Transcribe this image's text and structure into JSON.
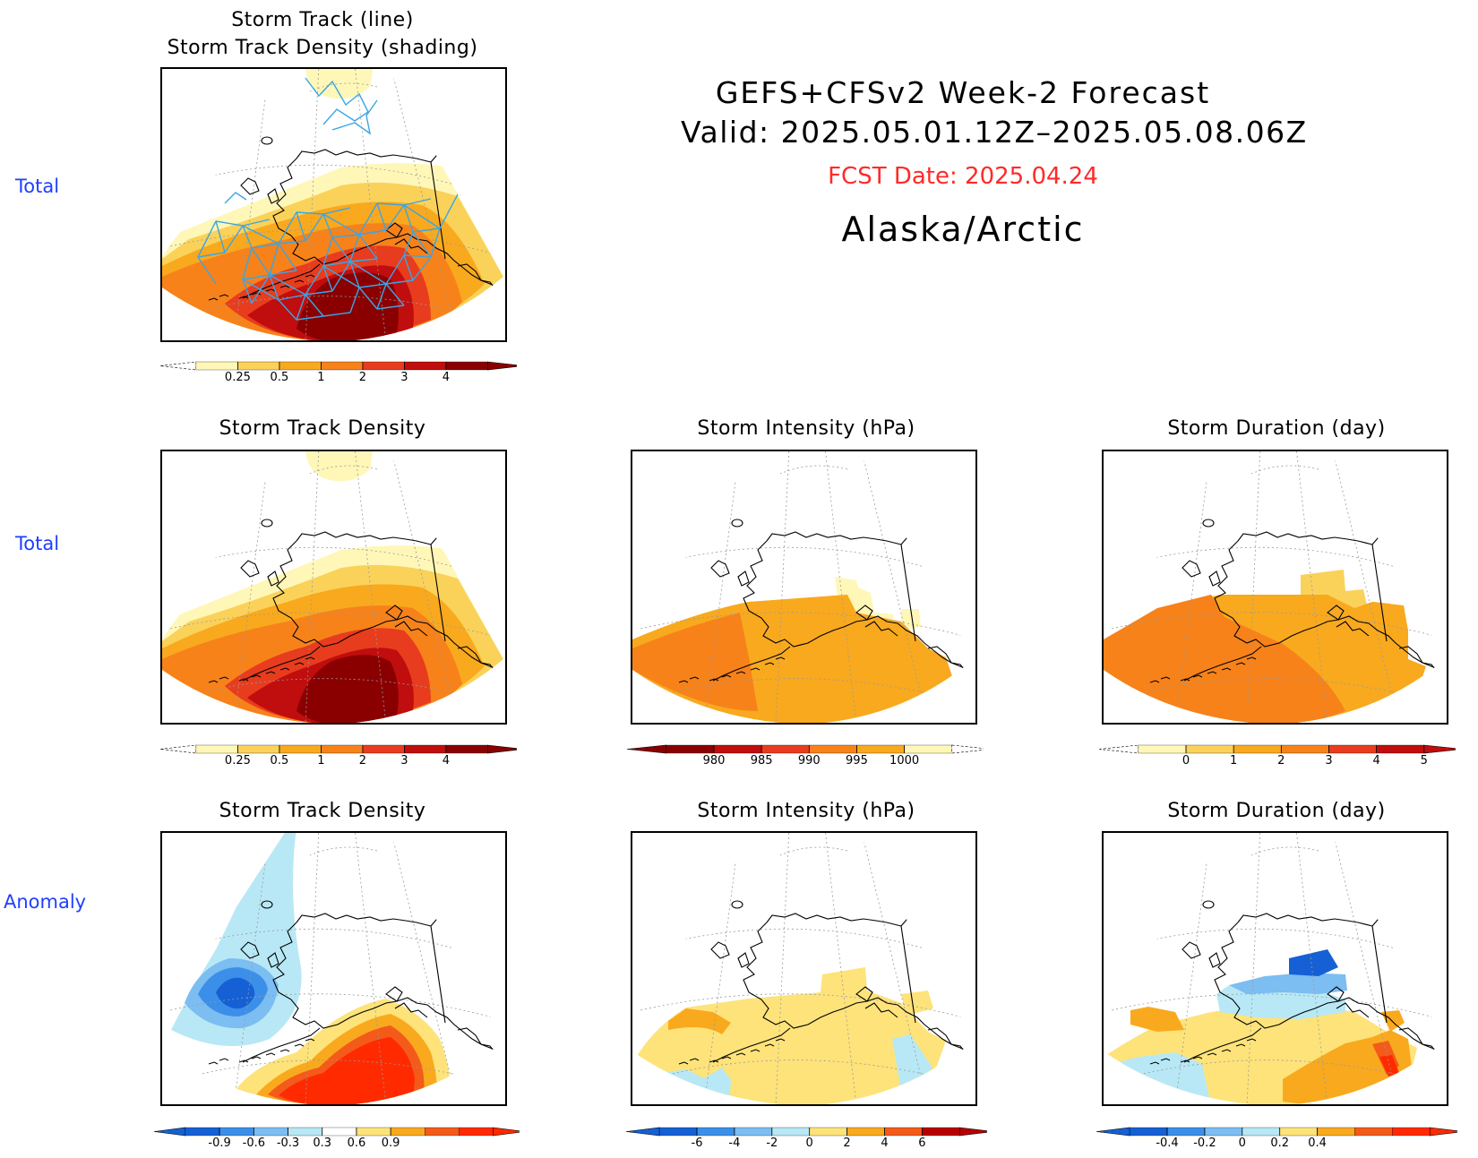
{
  "header": {
    "line1": "GEFS+CFSv2 Week-2 Forecast",
    "line2": "Valid: 2025.05.01.12Z–2025.05.08.06Z",
    "fcst": "FCST Date: 2025.04.24",
    "region": "Alaska/Arctic"
  },
  "colors": {
    "row_label": "#1f3fff",
    "fcst_date": "#ff2a2a",
    "track_line": "#3aa5e6"
  },
  "row_labels": {
    "row1": "Total",
    "row2": "Total",
    "row3": "Anomaly"
  },
  "panels": {
    "p1": {
      "title1": "Storm Track (line)",
      "title2": "Storm Track Density (shading)"
    },
    "p2": {
      "title": "Storm Track Density"
    },
    "p3": {
      "title": "Storm Intensity (hPa)"
    },
    "p4": {
      "title": "Storm Duration (day)"
    },
    "p5": {
      "title": "Storm Track Density"
    },
    "p6": {
      "title": "Storm Intensity (hPa)"
    },
    "p7": {
      "title": "Storm Duration (day)"
    }
  },
  "chart_data": [
    {
      "type": "heatmap",
      "title": "Storm Track (line) / Storm Track Density (shading)",
      "legend_ticks": [
        "0.25",
        "0.5",
        "1",
        "2",
        "3",
        "4"
      ],
      "legend_colors": [
        "#fff7b8",
        "#fad25a",
        "#f9a91e",
        "#f7821a",
        "#e83c1e",
        "#c00d0d",
        "#8a0000"
      ],
      "max_level": 4,
      "overlay": "storm track lines"
    },
    {
      "type": "heatmap",
      "title": "Storm Track Density",
      "legend_ticks": [
        "0.25",
        "0.5",
        "1",
        "2",
        "3",
        "4"
      ],
      "legend_colors": [
        "#fff7b8",
        "#fad25a",
        "#f9a91e",
        "#f7821a",
        "#e83c1e",
        "#c00d0d",
        "#8a0000"
      ],
      "max_level": 4
    },
    {
      "type": "heatmap",
      "title": "Storm Intensity (hPa)",
      "legend_ticks": [
        "980",
        "985",
        "990",
        "995",
        "1000"
      ],
      "legend_colors": [
        "#8a0000",
        "#c00d0d",
        "#e83c1e",
        "#f7821a",
        "#f9a91e",
        "#fff7b8"
      ],
      "dominant_range": [
        990,
        995
      ]
    },
    {
      "type": "heatmap",
      "title": "Storm Duration (day)",
      "legend_ticks": [
        "0",
        "1",
        "2",
        "3",
        "4",
        "5"
      ],
      "legend_colors": [
        "#fff7b8",
        "#fad25a",
        "#f9a91e",
        "#f7821a",
        "#e83c1e",
        "#c00d0d"
      ],
      "dominant_range": [
        2,
        4
      ]
    },
    {
      "type": "heatmap",
      "title": "Storm Track Density",
      "legend_ticks": [
        "-0.9",
        "-0.6",
        "-0.3",
        "0.3",
        "0.6",
        "0.9"
      ],
      "legend_colors": [
        "#1560d4",
        "#3b8fe8",
        "#7cbdf2",
        "#b8e8f5",
        "#ffffff",
        "#fde37a",
        "#f9a91e",
        "#f45a1a",
        "#ff2a00"
      ],
      "anomaly_min": -0.9,
      "anomaly_max": 0.9
    },
    {
      "type": "heatmap",
      "title": "Storm Intensity (hPa)",
      "legend_ticks": [
        "-6",
        "-4",
        "-2",
        "0",
        "2",
        "4",
        "6"
      ],
      "legend_colors": [
        "#1560d4",
        "#3b8fe8",
        "#7cbdf2",
        "#b8e8f5",
        "#fde37a",
        "#f9a91e",
        "#f45a1a",
        "#b80000"
      ],
      "dominant_range": [
        0,
        2
      ]
    },
    {
      "type": "heatmap",
      "title": "Storm Duration (day)",
      "legend_ticks": [
        "-0.4",
        "-0.2",
        "0",
        "0.2",
        "0.4"
      ],
      "legend_colors": [
        "#1560d4",
        "#3b8fe8",
        "#7cbdf2",
        "#b8e8f5",
        "#fde37a",
        "#f9a91e",
        "#f45a1a",
        "#ff2a00"
      ],
      "anomaly_min": -0.4,
      "anomaly_max": 0.4
    }
  ]
}
